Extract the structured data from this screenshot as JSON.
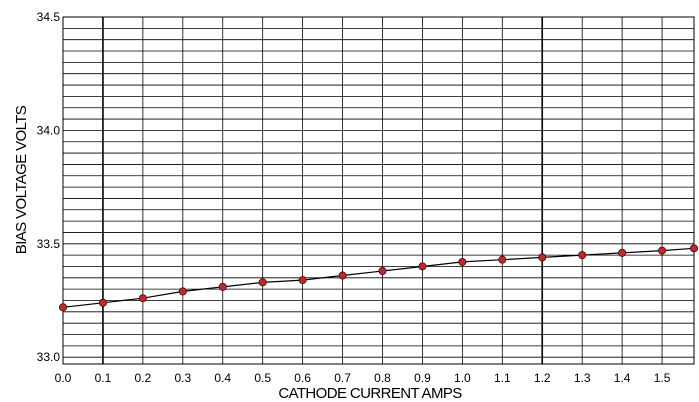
{
  "chart_data": {
    "type": "line",
    "xlabel": "CATHODE CURRENT AMPS",
    "ylabel": "BIAS VOLTAGE VOLTS",
    "xlim": [
      0.0,
      1.58
    ],
    "ylim": [
      32.97,
      34.5
    ],
    "x_ticks": [
      "0.0",
      "0.1",
      "0.2",
      "0.3",
      "0.4",
      "0.5",
      "0.6",
      "0.7",
      "0.8",
      "0.9",
      "1.0",
      "1.1",
      "1.2",
      "1.3",
      "1.4",
      "1.5"
    ],
    "y_ticks": [
      "33.0",
      "33.5",
      "34.0",
      "34.5"
    ],
    "grid": true,
    "series": [
      {
        "x": [
          0.0,
          0.1,
          0.2,
          0.3,
          0.4,
          0.5,
          0.6,
          0.7,
          0.8,
          0.9,
          1.0,
          1.1,
          1.2,
          1.3,
          1.4,
          1.5,
          1.58
        ],
        "y": [
          33.22,
          33.24,
          33.26,
          33.29,
          33.31,
          33.33,
          33.34,
          33.36,
          33.38,
          33.4,
          33.42,
          33.43,
          33.44,
          33.45,
          33.46,
          33.47,
          33.48
        ],
        "color": "#c0282d"
      }
    ]
  }
}
